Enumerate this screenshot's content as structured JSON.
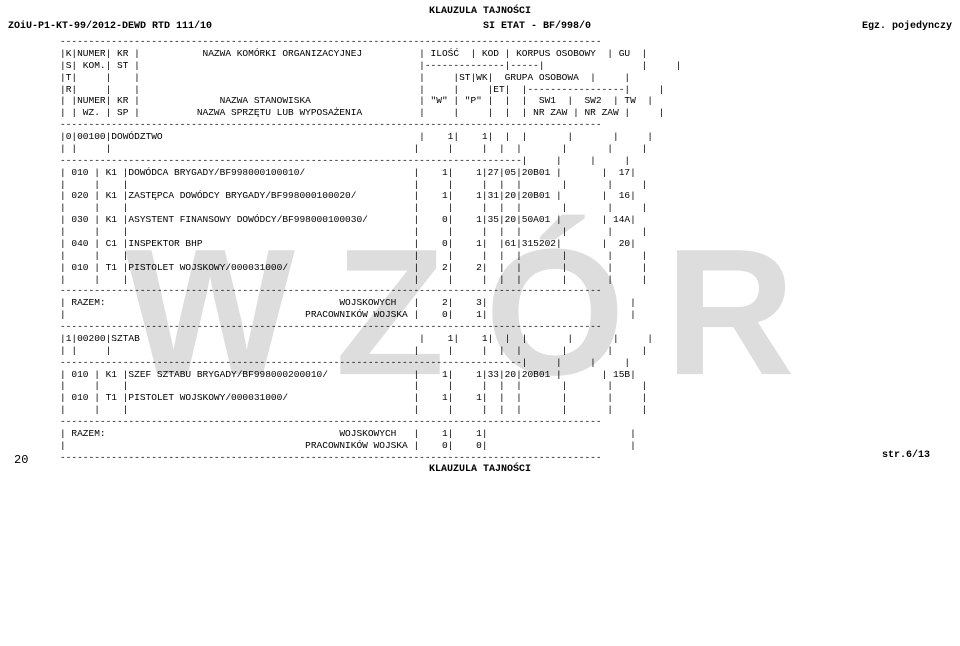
{
  "header": {
    "classification": "KLAUZULA TAJNOŚCI",
    "doc_left": "ZOiU-P1-KT-99/2012-DEWD RTD 111/10",
    "doc_center": "SI ETAT - BF/998/0",
    "doc_right": "Egz. pojedynczy"
  },
  "watermark": "WZÓR",
  "table_header": [
    "-----------------------------------------------------------------------------------------------",
    "|K|NUMER| KR |           NAZWA KOMÓRKI ORGANIZACYJNEJ          | ILOŚĆ  | KOD | KORPUS OSOBOWY  | GU  |",
    "|S| KOM.| ST |                                                 |--------------|-----|                 |     |",
    "|T|     |    |                                                 |     |ST|WK|  GRUPA OSOBOWA  |     |",
    "|R|     |    |                                                 |     |     |ET|  |-----------------|     |",
    "| |NUMER| KR |              NAZWA STANOWISKA                   | \"W\" | \"P\" |  |  |  SW1  |  SW2  | TW  |",
    "| | WZ. | SP |          NAZWA SPRZĘTU LUB WYPOSAŻENIA          |     |     |  |  | NR ZAW | NR ZAW |     |",
    "-----------------------------------------------------------------------------------------------"
  ],
  "sections": [
    {
      "lines": [
        "|0|00100|DOWÓDZTWO                                             |    1|    1|  |  |       |       |     |",
        "| |     |                                                     |     |     |  |  |       |       |     |",
        "---------------------------------------------------------------------------------|     |     |     |",
        "| 010 | K1 |DOWÓDCA BRYGADY/BF998000100010/                   |    1|    1|27|05|20B01 |       |  17|",
        "|     |    |                                                  |     |     |  |  |       |       |     |",
        "| 020 | K1 |ZASTĘPCA DOWÓDCY BRYGADY/BF998000100020/          |    1|    1|31|20|20B01 |       |  16|",
        "|     |    |                                                  |     |     |  |  |       |       |     |",
        "| 030 | K1 |ASYSTENT FINANSOWY DOWÓDCY/BF998000100030/        |    0|    1|35|20|50A01 |       | 14A|",
        "|     |    |                                                  |     |     |  |  |       |       |     |",
        "| 040 | C1 |INSPEKTOR BHP                                     |    0|    1|  |61|315202|       |  20|",
        "|     |    |                                                  |     |     |  |  |       |       |     |",
        "| 010 | T1 |PISTOLET WOJSKOWY/000031000/                      |    2|    2|  |  |       |       |     |",
        "|     |    |                                                  |     |     |  |  |       |       |     |",
        "-----------------------------------------------------------------------------------------------",
        "| RAZEM:                                         WOJSKOWYCH   |    2|    3|                         |",
        "|                                          PRACOWNIKÓW WOJSKA |    0|    1|                         |",
        "-----------------------------------------------------------------------------------------------"
      ]
    },
    {
      "lines": [
        "|1|00200|SZTAB                                                 |    1|    1|  |  |       |       |     |",
        "| |     |                                                     |     |     |  |  |       |       |     |",
        "---------------------------------------------------------------------------------|     |     |     |",
        "| 010 | K1 |SZEF SZTABU BRYGADY/BF998000200010/               |    1|    1|33|20|20B01 |       | 15B|",
        "|     |    |                                                  |     |     |  |  |       |       |     |",
        "| 010 | T1 |PISTOLET WOJSKOWY/000031000/                      |    1|    1|  |  |       |       |     |",
        "|     |    |                                                  |     |     |  |  |       |       |     |",
        "-----------------------------------------------------------------------------------------------",
        "| RAZEM:                                         WOJSKOWYCH   |    1|    1|                         |",
        "|                                          PRACOWNIKÓW WOJSKA |    0|    0|                         |",
        "-----------------------------------------------------------------------------------------------"
      ]
    }
  ],
  "footer": {
    "classification": "KLAUZULA TAJNOŚCI",
    "page_str": "str.6/13",
    "page_num": "20"
  }
}
